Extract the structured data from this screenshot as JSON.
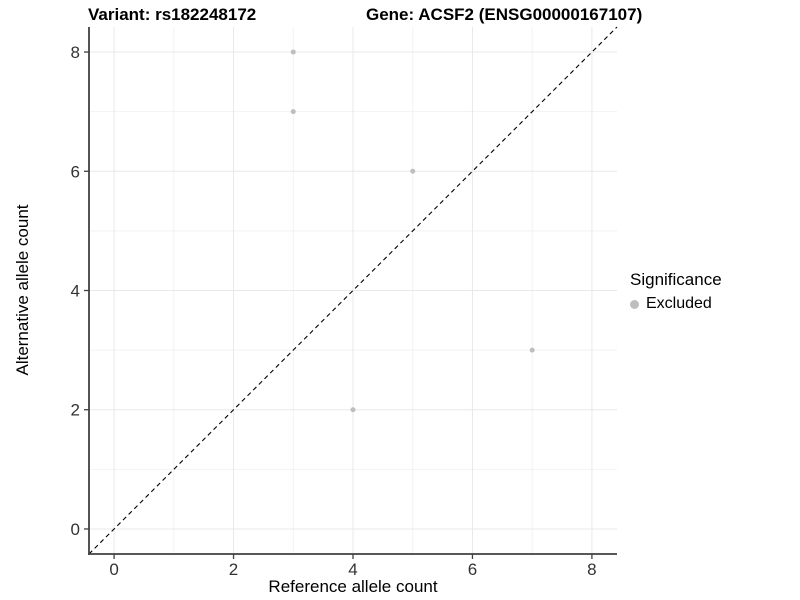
{
  "figure": {
    "title_left": "Variant: rs182248172",
    "title_right": "Gene: ACSF2 (ENSG00000167107)",
    "xlabel": "Reference allele count",
    "ylabel": "Alternative allele count"
  },
  "legend": {
    "title": "Significance",
    "items": [
      {
        "label": "Excluded",
        "color": "#bebebe"
      }
    ]
  },
  "chart_data": {
    "type": "scatter",
    "title": "Variant: rs182248172 — Gene: ACSF2 (ENSG00000167107)",
    "xlabel": "Reference allele count",
    "ylabel": "Alternative allele count",
    "xlim": [
      -0.42,
      8.42
    ],
    "ylim": [
      -0.42,
      8.42
    ],
    "xticks": [
      0,
      2,
      4,
      6,
      8
    ],
    "yticks": [
      0,
      2,
      4,
      6,
      8
    ],
    "minor_gridlines": [
      1,
      3,
      5,
      7
    ],
    "grid": "major and minor, light gray on white panel",
    "legend_position": "right-middle",
    "series": [
      {
        "name": "Excluded",
        "color": "#bebebe",
        "marker": "circle",
        "points": [
          [
            3,
            8
          ],
          [
            3,
            7
          ],
          [
            5,
            6
          ],
          [
            4,
            2
          ],
          [
            7,
            3
          ]
        ]
      }
    ],
    "reference_line": {
      "type": "identity y=x",
      "style": "dashed",
      "color": "#000000"
    }
  },
  "colors": {
    "background": "#ffffff",
    "grid_major": "#e8e8e8",
    "grid_minor": "#f2f2f2",
    "axis_line": "#404040",
    "tick_label": "#333333",
    "point": "#bebebe",
    "dashed_line": "#000000"
  }
}
